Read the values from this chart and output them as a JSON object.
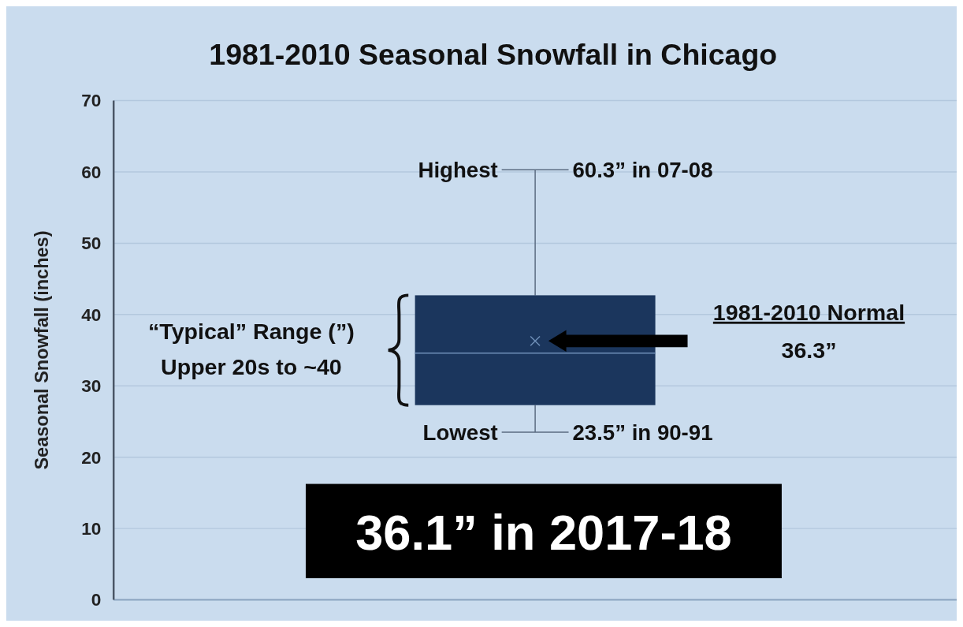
{
  "chart_data": {
    "type": "box",
    "title": "1981-2010 Seasonal Snowfall in Chicago",
    "ylabel": "Seasonal Snowfall (inches)",
    "categories": [
      null
    ],
    "boxes": [
      {
        "low": 23.5,
        "q1": 27.3,
        "median": 34.6,
        "q3": 42.7,
        "high": 60.3,
        "mean": 36.3
      }
    ],
    "color": "#1b365d",
    "ylim": [
      0,
      70
    ],
    "yticks": [
      0,
      10,
      20,
      30,
      40,
      50,
      60,
      70
    ],
    "grid": "y",
    "annotations": [
      "Highest",
      "60.3” in 07-08",
      "Lowest",
      "23.5” in 90-91",
      "“Typical” Range (”)\nUpper 20s to ~40",
      "1981-2010 Normal\n36.3”",
      "36.1” in 2017-18"
    ]
  }
}
